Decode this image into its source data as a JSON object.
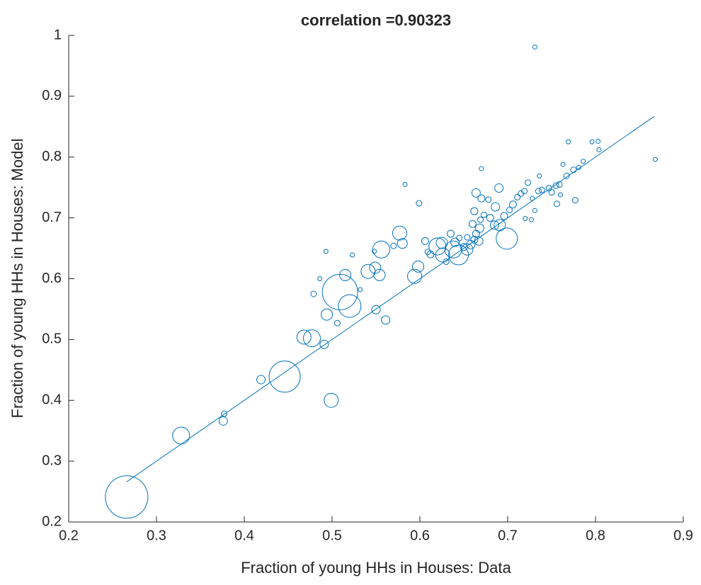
{
  "chart_data": {
    "type": "scatter",
    "title": "correlation =0.90323",
    "xlabel": "Fraction of young HHs in Houses: Data",
    "ylabel": "Fraction of young HHs in Houses: Model",
    "xlim": [
      0.2,
      0.9
    ],
    "ylim": [
      0.2,
      1
    ],
    "xticks": [
      0.2,
      0.3,
      0.4,
      0.5,
      0.6,
      0.7,
      0.8,
      0.9
    ],
    "yticks": [
      0.2,
      0.3,
      0.4,
      0.5,
      0.6,
      0.7,
      0.8,
      0.9,
      1
    ],
    "grid": false,
    "series": [
      {
        "type": "scatter",
        "color": "#0072bd",
        "x": [
          0.266,
          0.328,
          0.446,
          0.509,
          0.52,
          0.499,
          0.477,
          0.468,
          0.419,
          0.376,
          0.377,
          0.491,
          0.494,
          0.515,
          0.541,
          0.549,
          0.554,
          0.556,
          0.577,
          0.58,
          0.55,
          0.561,
          0.506,
          0.479,
          0.486,
          0.493,
          0.523,
          0.532,
          0.583,
          0.599,
          0.594,
          0.598,
          0.606,
          0.609,
          0.62,
          0.626,
          0.625,
          0.638,
          0.644,
          0.654,
          0.658,
          0.662,
          0.664,
          0.668,
          0.669,
          0.654,
          0.699,
          0.691,
          0.685,
          0.686,
          0.69,
          0.678,
          0.696,
          0.706,
          0.711,
          0.719,
          0.723,
          0.728,
          0.735,
          0.739,
          0.747,
          0.755,
          0.759,
          0.767,
          0.775,
          0.781,
          0.777,
          0.756,
          0.731,
          0.72,
          0.727,
          0.67,
          0.731,
          0.769,
          0.796,
          0.803,
          0.804,
          0.786,
          0.868,
          0.763,
          0.736,
          0.664,
          0.67,
          0.662,
          0.667,
          0.635,
          0.57,
          0.548,
          0.64,
          0.65,
          0.645,
          0.68,
          0.702,
          0.715,
          0.75,
          0.76,
          0.612,
          0.63,
          0.66,
          0.673
        ],
        "values": [
          0.241,
          0.342,
          0.439,
          0.578,
          0.555,
          0.4,
          0.502,
          0.504,
          0.434,
          0.366,
          0.378,
          0.492,
          0.541,
          0.606,
          0.612,
          0.618,
          0.606,
          0.648,
          0.675,
          0.658,
          0.549,
          0.532,
          0.527,
          0.575,
          0.6,
          0.645,
          0.639,
          0.582,
          0.755,
          0.724,
          0.604,
          0.62,
          0.662,
          0.644,
          0.653,
          0.639,
          0.659,
          0.648,
          0.639,
          0.648,
          0.656,
          0.664,
          0.674,
          0.683,
          0.697,
          0.668,
          0.666,
          0.688,
          0.688,
          0.718,
          0.749,
          0.73,
          0.703,
          0.722,
          0.734,
          0.744,
          0.758,
          0.732,
          0.744,
          0.746,
          0.749,
          0.753,
          0.755,
          0.769,
          0.779,
          0.783,
          0.729,
          0.723,
          0.712,
          0.699,
          0.697,
          0.781,
          0.981,
          0.825,
          0.825,
          0.826,
          0.812,
          0.793,
          0.796,
          0.788,
          0.769,
          0.741,
          0.732,
          0.711,
          0.662,
          0.674,
          0.654,
          0.645,
          0.66,
          0.652,
          0.667,
          0.7,
          0.713,
          0.74,
          0.742,
          0.738,
          0.64,
          0.628,
          0.69,
          0.705
        ],
        "sizes": [
          30,
          12,
          22,
          25,
          16,
          10,
          12,
          10,
          6,
          6,
          4,
          6,
          8,
          8,
          10,
          8,
          8,
          12,
          10,
          7,
          6,
          6,
          4,
          4,
          3,
          3,
          3,
          3,
          3,
          4,
          10,
          8,
          5,
          4,
          12,
          10,
          8,
          12,
          14,
          8,
          6,
          5,
          5,
          6,
          4,
          4,
          15,
          8,
          6,
          6,
          6,
          4,
          5,
          5,
          4,
          4,
          4,
          3,
          4,
          4,
          4,
          4,
          4,
          4,
          4,
          3,
          4,
          4,
          3,
          3,
          3,
          3,
          3,
          3,
          3,
          3,
          3,
          3,
          3,
          3,
          3,
          6,
          5,
          5,
          6,
          5,
          4,
          3,
          6,
          5,
          4,
          5,
          4,
          4,
          4,
          3,
          5,
          4,
          5,
          4
        ]
      },
      {
        "type": "line",
        "color": "#0072bd",
        "x": [
          0.266,
          0.867
        ],
        "values": [
          0.266,
          0.867
        ]
      }
    ]
  }
}
